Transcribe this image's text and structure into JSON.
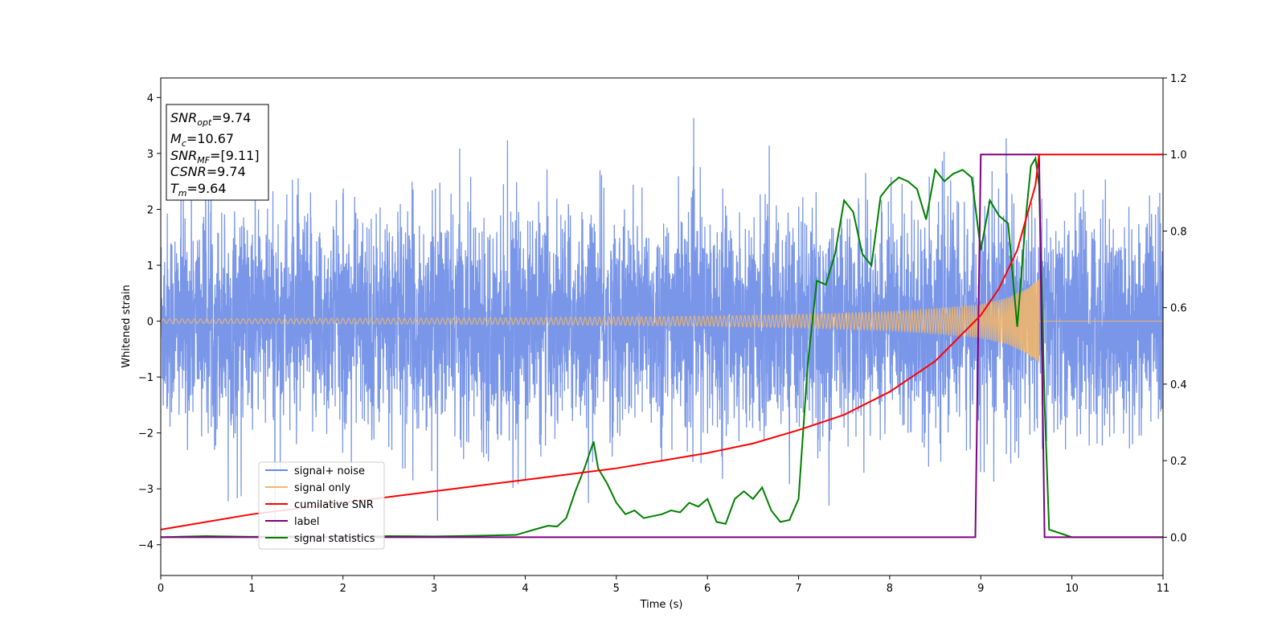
{
  "chart_data": {
    "type": "line",
    "xlabel": "Time (s)",
    "ylabel": "Whitened strain",
    "xlim": [
      0,
      11
    ],
    "ylim": [
      -4.55,
      4.35
    ],
    "y2lim": [
      -0.1,
      1.2
    ],
    "x_ticks": [
      "0",
      "1",
      "2",
      "3",
      "4",
      "5",
      "6",
      "7",
      "8",
      "9",
      "10",
      "11"
    ],
    "y_ticks": [
      "4",
      "3",
      "2",
      "1",
      "0",
      "−1",
      "−2",
      "−3",
      "−4"
    ],
    "y_tick_values": [
      4,
      3,
      2,
      1,
      0,
      -1,
      -2,
      -3,
      -4
    ],
    "y2_ticks": [
      "1.2",
      "1.0",
      "0.8",
      "0.6",
      "0.4",
      "0.2",
      "0.0"
    ],
    "y2_tick_values": [
      1.2,
      1.0,
      0.8,
      0.6,
      0.4,
      0.2,
      0.0
    ],
    "legend_position": "lower-left",
    "annotation": {
      "snr_opt": {
        "main": "SNR",
        "sub": "opt",
        "value": "=9.74"
      },
      "mc": {
        "main": "M",
        "sub": "c",
        "value": "=10.67"
      },
      "snr_mf": {
        "main": "SNR",
        "sub": "MF",
        "value": "=[9.11]"
      },
      "csnr": {
        "main": "CSNR",
        "value": "=9.74"
      },
      "tm": {
        "main": "T",
        "sub": "m",
        "value": "=9.64"
      }
    },
    "series": [
      {
        "name": "signal+ noise",
        "axis": "left",
        "color": "#6a8be6",
        "description_points": {
          "x": [
            0,
            11
          ],
          "y_range": [
            -4.15,
            3.98
          ],
          "typical_amplitude": 2.6
        }
      },
      {
        "name": "signal only",
        "axis": "left",
        "color": "#f5b766",
        "envelope": {
          "t": [
            0,
            2,
            4,
            6,
            7,
            8,
            8.5,
            9,
            9.3,
            9.5,
            9.64
          ],
          "amp": [
            0.04,
            0.05,
            0.06,
            0.09,
            0.12,
            0.17,
            0.22,
            0.3,
            0.42,
            0.58,
            0.75
          ]
        }
      },
      {
        "name": "cumilative SNR",
        "axis": "right",
        "color": "#ff0000",
        "x": [
          0,
          1,
          2,
          3,
          4,
          5,
          6,
          6.5,
          7,
          7.5,
          8,
          8.5,
          9,
          9.2,
          9.4,
          9.6,
          9.64,
          11
        ],
        "y": [
          0.02,
          0.06,
          0.09,
          0.12,
          0.15,
          0.18,
          0.22,
          0.245,
          0.28,
          0.32,
          0.38,
          0.46,
          0.58,
          0.65,
          0.75,
          0.92,
          1.0,
          1.0
        ]
      },
      {
        "name": "label",
        "axis": "right",
        "color": "#800080",
        "x": [
          0,
          8.94,
          9.0,
          9.64,
          9.7,
          11
        ],
        "y": [
          0,
          0,
          1,
          1,
          0,
          0
        ]
      },
      {
        "name": "signal statistics",
        "axis": "right",
        "color": "#008000",
        "x": [
          0,
          0.5,
          1,
          1.5,
          2,
          2.5,
          3,
          3.5,
          3.9,
          4.1,
          4.25,
          4.35,
          4.45,
          4.55,
          4.65,
          4.75,
          4.8,
          4.9,
          5.0,
          5.1,
          5.2,
          5.3,
          5.4,
          5.5,
          5.6,
          5.7,
          5.8,
          5.9,
          6.0,
          6.1,
          6.2,
          6.3,
          6.4,
          6.5,
          6.6,
          6.7,
          6.8,
          6.9,
          7.0,
          7.1,
          7.2,
          7.3,
          7.4,
          7.5,
          7.6,
          7.7,
          7.8,
          7.9,
          8.0,
          8.1,
          8.2,
          8.3,
          8.4,
          8.5,
          8.6,
          8.7,
          8.8,
          8.9,
          9.0,
          9.1,
          9.2,
          9.3,
          9.4,
          9.5,
          9.55,
          9.6,
          9.64,
          9.7,
          9.75,
          10,
          10.5,
          11
        ],
        "y": [
          0.0,
          0.003,
          0.001,
          0.002,
          0.001,
          0.003,
          0.002,
          0.004,
          0.006,
          0.02,
          0.03,
          0.028,
          0.05,
          0.12,
          0.18,
          0.25,
          0.18,
          0.14,
          0.09,
          0.06,
          0.07,
          0.05,
          0.055,
          0.06,
          0.07,
          0.065,
          0.09,
          0.08,
          0.1,
          0.04,
          0.035,
          0.1,
          0.12,
          0.1,
          0.13,
          0.07,
          0.04,
          0.045,
          0.1,
          0.45,
          0.67,
          0.66,
          0.74,
          0.88,
          0.85,
          0.74,
          0.71,
          0.89,
          0.92,
          0.94,
          0.93,
          0.91,
          0.83,
          0.96,
          0.93,
          0.95,
          0.96,
          0.94,
          0.75,
          0.88,
          0.84,
          0.82,
          0.55,
          0.85,
          0.97,
          0.99,
          0.92,
          0.35,
          0.02,
          0.0,
          0.0,
          0.0
        ]
      }
    ]
  }
}
